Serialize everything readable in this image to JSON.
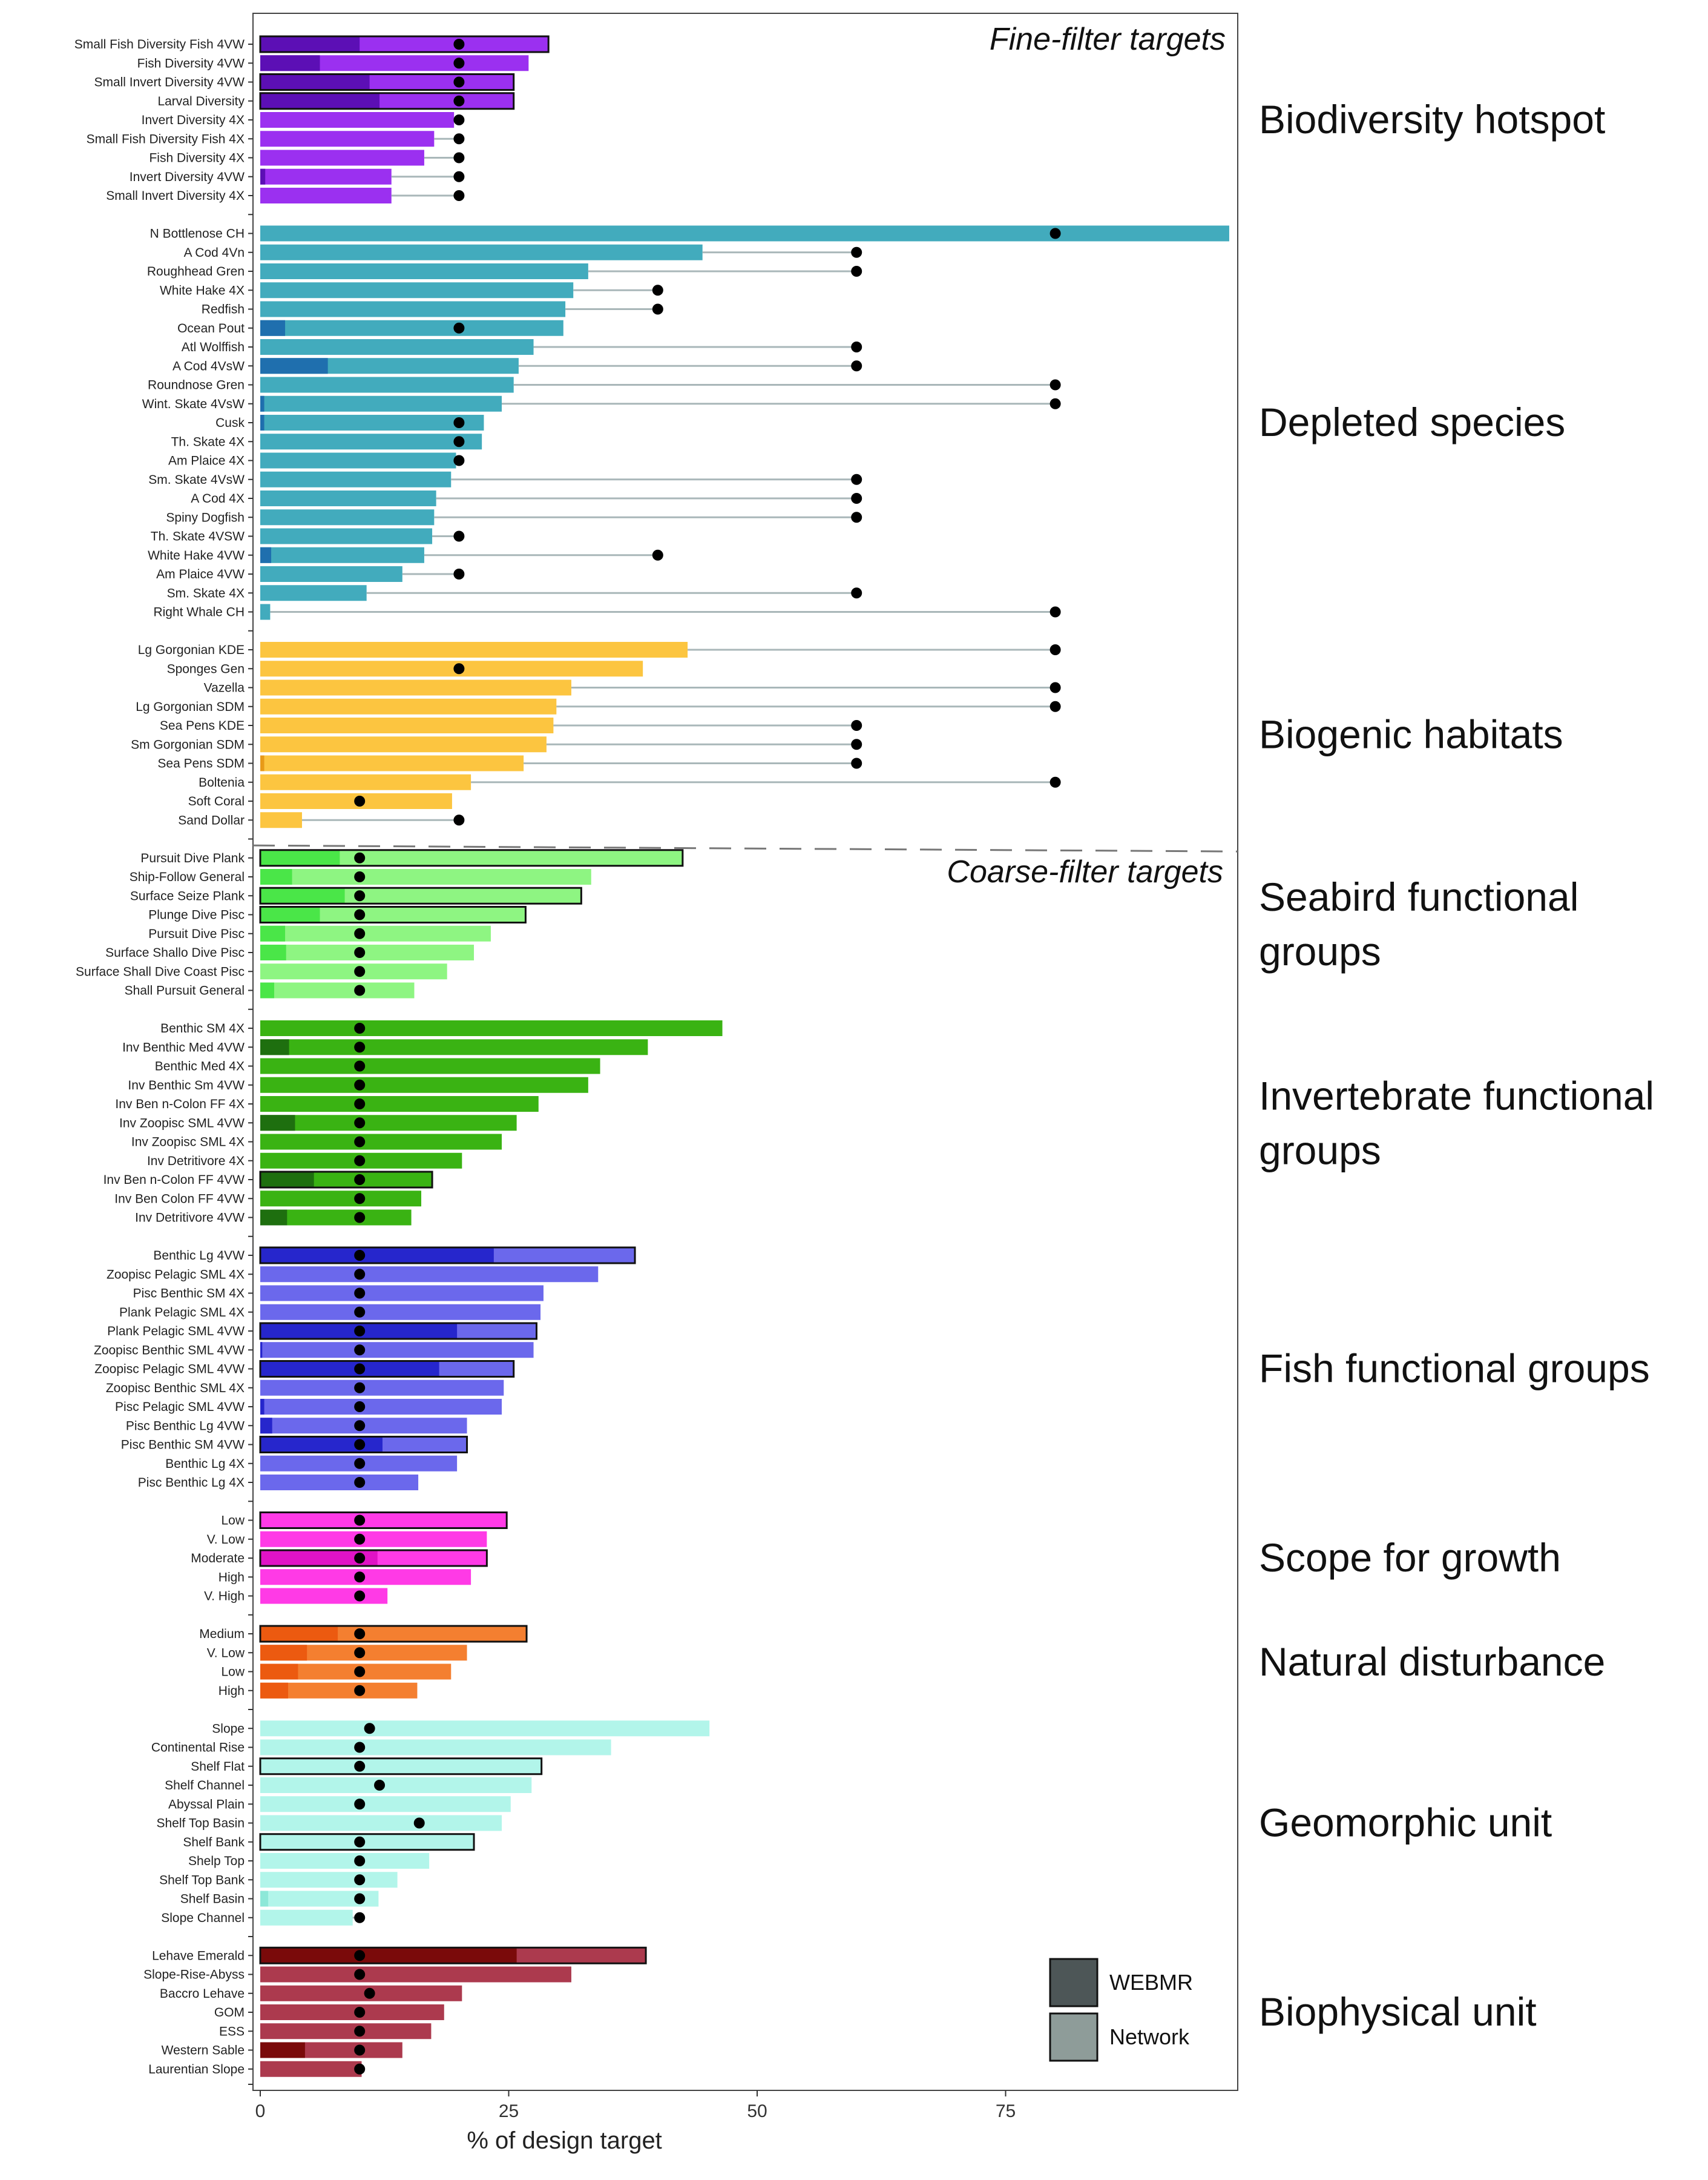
{
  "chart_data": {
    "type": "bar",
    "orientation": "horizontal",
    "xlabel": "% of design target",
    "xlim": [
      0,
      98
    ],
    "xticks": [
      0,
      25,
      50,
      75
    ],
    "grid": false,
    "section_labels": [
      "Fine-filter targets",
      "Coarse-filter targets"
    ],
    "legend": {
      "placement": "bottom-right",
      "entries": [
        {
          "name": "WEBMR",
          "color": "#4d5657"
        },
        {
          "name": "Network",
          "color": "#8e9c99"
        }
      ]
    },
    "groups": [
      {
        "name": "Biodiversity hotspot",
        "section": "fine",
        "color": "#9b30f0",
        "dark_color": "#5c0fb5",
        "light_color": "#9b30f0",
        "categories": [
          {
            "label": "Small Fish Diversity Fish 4VW",
            "network": 29,
            "webmr": 10,
            "target": 20,
            "outlined": true
          },
          {
            "label": "Fish Diversity 4VW",
            "network": 27,
            "webmr": 6,
            "target": 20,
            "outlined": false
          },
          {
            "label": "Small Invert Diversity 4VW",
            "network": 25.5,
            "webmr": 11,
            "target": 20,
            "outlined": true
          },
          {
            "label": "Larval Diversity",
            "network": 25.5,
            "webmr": 12,
            "target": 20,
            "outlined": true
          },
          {
            "label": "Invert Diversity 4X",
            "network": 19.5,
            "webmr": 0,
            "target": 20,
            "outlined": false
          },
          {
            "label": "Small Fish Diversity Fish 4X",
            "network": 17.5,
            "webmr": 0,
            "target": 20,
            "outlined": false
          },
          {
            "label": "Fish Diversity 4X",
            "network": 16.5,
            "webmr": 0,
            "target": 20,
            "outlined": false
          },
          {
            "label": "Invert Diversity 4VW",
            "network": 13.2,
            "webmr": 0.5,
            "target": 20,
            "outlined": false
          },
          {
            "label": "Small Invert Diversity 4X",
            "network": 13.2,
            "webmr": 0,
            "target": 20,
            "outlined": false
          }
        ]
      },
      {
        "name": "Depleted species",
        "section": "fine",
        "color": "#42abbd",
        "dark_color": "#1f6fae",
        "light_color": "#42abbd",
        "categories": [
          {
            "label": "N Bottlenose CH",
            "network": 97.5,
            "webmr": 0,
            "target": 80,
            "outlined": false
          },
          {
            "label": "A Cod 4Vn",
            "network": 44.5,
            "webmr": 0,
            "target": 60,
            "outlined": false
          },
          {
            "label": "Roughhead Gren",
            "network": 33,
            "webmr": 0,
            "target": 60,
            "outlined": false
          },
          {
            "label": "White Hake 4X",
            "network": 31.5,
            "webmr": 0,
            "target": 40,
            "outlined": false
          },
          {
            "label": "Redfish",
            "network": 30.7,
            "webmr": 0,
            "target": 40,
            "outlined": false
          },
          {
            "label": "Ocean Pout",
            "network": 30.5,
            "webmr": 2.5,
            "target": 20,
            "outlined": false
          },
          {
            "label": "Atl Wolffish",
            "network": 27.5,
            "webmr": 0,
            "target": 60,
            "outlined": false
          },
          {
            "label": "A Cod 4VsW",
            "network": 26,
            "webmr": 6.8,
            "target": 60,
            "outlined": false
          },
          {
            "label": "Roundnose Gren",
            "network": 25.5,
            "webmr": 0,
            "target": 80,
            "outlined": false
          },
          {
            "label": "Wint. Skate 4VsW",
            "network": 24.3,
            "webmr": 0.4,
            "target": 80,
            "outlined": false
          },
          {
            "label": "Cusk",
            "network": 22.5,
            "webmr": 0.4,
            "target": 20,
            "outlined": false
          },
          {
            "label": "Th. Skate 4X",
            "network": 22.3,
            "webmr": 0,
            "target": 20,
            "outlined": false
          },
          {
            "label": "Am Plaice 4X",
            "network": 19.7,
            "webmr": 0,
            "target": 20,
            "outlined": false
          },
          {
            "label": "Sm. Skate 4VsW",
            "network": 19.2,
            "webmr": 0,
            "target": 60,
            "outlined": false
          },
          {
            "label": "A Cod 4X",
            "network": 17.7,
            "webmr": 0,
            "target": 60,
            "outlined": false
          },
          {
            "label": "Spiny Dogfish",
            "network": 17.5,
            "webmr": 0,
            "target": 60,
            "outlined": false
          },
          {
            "label": "Th. Skate 4VSW",
            "network": 17.3,
            "webmr": 0,
            "target": 20,
            "outlined": false
          },
          {
            "label": "White Hake 4VW",
            "network": 16.5,
            "webmr": 1.1,
            "target": 40,
            "outlined": false
          },
          {
            "label": "Am Plaice 4VW",
            "network": 14.3,
            "webmr": 0,
            "target": 20,
            "outlined": false
          },
          {
            "label": "Sm. Skate 4X",
            "network": 10.7,
            "webmr": 0,
            "target": 60,
            "outlined": false
          },
          {
            "label": "Right Whale CH",
            "network": 1,
            "webmr": 0,
            "target": 80,
            "outlined": false
          }
        ]
      },
      {
        "name": "Biogenic habitats",
        "section": "fine",
        "color": "#fcc540",
        "dark_color": "#e89a18",
        "light_color": "#fcc540",
        "categories": [
          {
            "label": "Lg Gorgonian KDE",
            "network": 43,
            "webmr": 0,
            "target": 80,
            "outlined": false
          },
          {
            "label": "Sponges Gen",
            "network": 38.5,
            "webmr": 0,
            "target": 20,
            "outlined": false
          },
          {
            "label": "Vazella",
            "network": 31.3,
            "webmr": 0,
            "target": 80,
            "outlined": false
          },
          {
            "label": "Lg Gorgonian SDM",
            "network": 29.8,
            "webmr": 0,
            "target": 80,
            "outlined": false
          },
          {
            "label": "Sea Pens KDE",
            "network": 29.5,
            "webmr": 0,
            "target": 60,
            "outlined": false
          },
          {
            "label": "Sm Gorgonian SDM",
            "network": 28.8,
            "webmr": 0,
            "target": 60,
            "outlined": false
          },
          {
            "label": "Sea Pens SDM",
            "network": 26.5,
            "webmr": 0.4,
            "target": 60,
            "outlined": false
          },
          {
            "label": "Boltenia",
            "network": 21.2,
            "webmr": 0,
            "target": 80,
            "outlined": false
          },
          {
            "label": "Soft Coral",
            "network": 19.3,
            "webmr": 0,
            "target": 10,
            "outlined": false
          },
          {
            "label": "Sand Dollar",
            "network": 4.2,
            "webmr": 0,
            "target": 20,
            "outlined": false
          }
        ]
      },
      {
        "name": "Seabird functional groups",
        "section": "coarse",
        "color": "#8ef582",
        "dark_color": "#4ae648",
        "light_color": "#8ef582",
        "categories": [
          {
            "label": "Pursuit Dive Plank",
            "network": 42.5,
            "webmr": 8,
            "target": 10,
            "outlined": true
          },
          {
            "label": "Ship-Follow General",
            "network": 33.3,
            "webmr": 3.2,
            "target": 10,
            "outlined": false
          },
          {
            "label": "Surface Seize Plank",
            "network": 32.3,
            "webmr": 8.5,
            "target": 10,
            "outlined": true
          },
          {
            "label": "Plunge Dive Pisc",
            "network": 26.7,
            "webmr": 6,
            "target": 10,
            "outlined": true
          },
          {
            "label": "Pursuit Dive Pisc",
            "network": 23.2,
            "webmr": 2.5,
            "target": 10,
            "outlined": false
          },
          {
            "label": "Surface Shallo Dive Pisc",
            "network": 21.5,
            "webmr": 2.6,
            "target": 10,
            "outlined": false
          },
          {
            "label": "Surface Shall Dive Coast Pisc",
            "network": 18.8,
            "webmr": 0,
            "target": 10,
            "outlined": false
          },
          {
            "label": "Shall Pursuit General",
            "network": 15.5,
            "webmr": 1.4,
            "target": 10,
            "outlined": false
          }
        ]
      },
      {
        "name": "Invertebrate functional groups",
        "section": "coarse",
        "color": "#3ab313",
        "dark_color": "#1e6f0f",
        "light_color": "#3ab313",
        "categories": [
          {
            "label": "Benthic SM 4X",
            "network": 46.5,
            "webmr": 0,
            "target": 10,
            "outlined": false
          },
          {
            "label": "Inv Benthic Med 4VW",
            "network": 39,
            "webmr": 2.9,
            "target": 10,
            "outlined": false
          },
          {
            "label": "Benthic Med 4X",
            "network": 34.2,
            "webmr": 0,
            "target": 10,
            "outlined": false
          },
          {
            "label": "Inv Benthic Sm 4VW",
            "network": 33,
            "webmr": 0,
            "target": 10,
            "outlined": false
          },
          {
            "label": "Inv Ben n-Colon FF 4X",
            "network": 28,
            "webmr": 0,
            "target": 10,
            "outlined": false
          },
          {
            "label": "Inv Zoopisc SML 4VW",
            "network": 25.8,
            "webmr": 3.5,
            "target": 10,
            "outlined": false
          },
          {
            "label": "Inv Zoopisc SML 4X",
            "network": 24.3,
            "webmr": 0,
            "target": 10,
            "outlined": false
          },
          {
            "label": "Inv Detritivore 4X",
            "network": 20.3,
            "webmr": 0,
            "target": 10,
            "outlined": false
          },
          {
            "label": "Inv Ben n-Colon FF 4VW",
            "network": 17.3,
            "webmr": 5.4,
            "target": 10,
            "outlined": true
          },
          {
            "label": "Inv Ben Colon FF 4VW",
            "network": 16.2,
            "webmr": 0,
            "target": 10,
            "outlined": false
          },
          {
            "label": "Inv Detritivore 4VW",
            "network": 15.2,
            "webmr": 2.7,
            "target": 10,
            "outlined": false
          }
        ]
      },
      {
        "name": "Fish functional groups",
        "section": "coarse",
        "color": "#6b68ec",
        "dark_color": "#2626cc",
        "light_color": "#6b68ec",
        "categories": [
          {
            "label": "Benthic Lg 4VW",
            "network": 37.7,
            "webmr": 23.5,
            "target": 10,
            "outlined": true
          },
          {
            "label": "Zoopisc Pelagic SML 4X",
            "network": 34,
            "webmr": 0,
            "target": 10,
            "outlined": false
          },
          {
            "label": "Pisc Benthic SM 4X",
            "network": 28.5,
            "webmr": 0,
            "target": 10,
            "outlined": false
          },
          {
            "label": "Plank Pelagic SML 4X",
            "network": 28.2,
            "webmr": 0,
            "target": 10,
            "outlined": false
          },
          {
            "label": "Plank Pelagic SML 4VW",
            "network": 27.8,
            "webmr": 19.8,
            "target": 10,
            "outlined": true
          },
          {
            "label": "Zoopisc Benthic SML 4VW",
            "network": 27.5,
            "webmr": 0.2,
            "target": 10,
            "outlined": false
          },
          {
            "label": "Zoopisc Pelagic SML 4VW",
            "network": 25.5,
            "webmr": 18,
            "target": 10,
            "outlined": true
          },
          {
            "label": "Zoopisc Benthic SML 4X",
            "network": 24.5,
            "webmr": 0,
            "target": 10,
            "outlined": false
          },
          {
            "label": "Pisc Pelagic SML 4VW",
            "network": 24.3,
            "webmr": 0.4,
            "target": 10,
            "outlined": false
          },
          {
            "label": "Pisc Benthic Lg 4VW",
            "network": 20.8,
            "webmr": 1.2,
            "target": 10,
            "outlined": false
          },
          {
            "label": "Pisc Benthic SM 4VW",
            "network": 20.8,
            "webmr": 12.3,
            "target": 10,
            "outlined": true
          },
          {
            "label": "Benthic Lg 4X",
            "network": 19.8,
            "webmr": 0,
            "target": 10,
            "outlined": false
          },
          {
            "label": "Pisc Benthic Lg 4X",
            "network": 15.9,
            "webmr": 0,
            "target": 10,
            "outlined": false
          }
        ]
      },
      {
        "name": "Scope for growth",
        "section": "coarse",
        "color": "#ff3ae6",
        "dark_color": "#e013c6",
        "light_color": "#ff3ae6",
        "categories": [
          {
            "label": "Low",
            "network": 24.8,
            "webmr": 0,
            "target": 10,
            "outlined": true
          },
          {
            "label": "V. Low",
            "network": 22.8,
            "webmr": 0,
            "target": 10,
            "outlined": false
          },
          {
            "label": "Moderate",
            "network": 22.8,
            "webmr": 11.8,
            "target": 10,
            "outlined": true
          },
          {
            "label": "High",
            "network": 21.2,
            "webmr": 0,
            "target": 10,
            "outlined": false
          },
          {
            "label": "V. High",
            "network": 12.8,
            "webmr": 0,
            "target": 10,
            "outlined": false
          }
        ]
      },
      {
        "name": "Natural disturbance",
        "section": "coarse",
        "color": "#f47f30",
        "dark_color": "#ec5a10",
        "light_color": "#f47f30",
        "categories": [
          {
            "label": "Medium",
            "network": 26.8,
            "webmr": 7.8,
            "target": 10,
            "outlined": true
          },
          {
            "label": "V. Low",
            "network": 20.8,
            "webmr": 4.7,
            "target": 10,
            "outlined": false
          },
          {
            "label": "Low",
            "network": 19.2,
            "webmr": 3.8,
            "target": 10,
            "outlined": false
          },
          {
            "label": "High",
            "network": 15.8,
            "webmr": 2.8,
            "target": 10,
            "outlined": false
          }
        ]
      },
      {
        "name": "Geomorphic unit",
        "section": "coarse",
        "color": "#b2f5ea",
        "dark_color": "#8de8d8",
        "light_color": "#b2f5ea",
        "categories": [
          {
            "label": "Slope",
            "network": 45.2,
            "webmr": 0,
            "target": 11,
            "outlined": false
          },
          {
            "label": "Continental Rise",
            "network": 35.3,
            "webmr": 0,
            "target": 10,
            "outlined": false
          },
          {
            "label": "Shelf Flat",
            "network": 28.3,
            "webmr": 0,
            "target": 10,
            "outlined": true
          },
          {
            "label": "Shelf Channel",
            "network": 27.3,
            "webmr": 0,
            "target": 12,
            "outlined": false
          },
          {
            "label": "Abyssal Plain",
            "network": 25.2,
            "webmr": 0,
            "target": 10,
            "outlined": false
          },
          {
            "label": "Shelf Top Basin",
            "network": 24.3,
            "webmr": 0,
            "target": 16,
            "outlined": false
          },
          {
            "label": "Shelf Bank",
            "network": 21.5,
            "webmr": 0,
            "target": 10,
            "outlined": true
          },
          {
            "label": "Shelp Top",
            "network": 17,
            "webmr": 0,
            "target": 10,
            "outlined": false
          },
          {
            "label": "Shelf Top Bank",
            "network": 13.8,
            "webmr": 0,
            "target": 10,
            "outlined": false
          },
          {
            "label": "Shelf Basin",
            "network": 11.9,
            "webmr": 0.8,
            "target": 10,
            "outlined": false
          },
          {
            "label": "Slope Channel",
            "network": 9.3,
            "webmr": 0,
            "target": 10,
            "outlined": false
          }
        ]
      },
      {
        "name": "Biophysical unit",
        "section": "coarse",
        "color": "#ac3a4e",
        "dark_color": "#7a0a0a",
        "light_color": "#ac3a4e",
        "categories": [
          {
            "label": "Lehave Emerald",
            "network": 38.8,
            "webmr": 25.8,
            "target": 10,
            "outlined": true
          },
          {
            "label": "Slope-Rise-Abyss",
            "network": 31.3,
            "webmr": 0,
            "target": 10,
            "outlined": false
          },
          {
            "label": "Baccro Lehave",
            "network": 20.3,
            "webmr": 0,
            "target": 11,
            "outlined": false
          },
          {
            "label": "GOM",
            "network": 18.5,
            "webmr": 0,
            "target": 10,
            "outlined": false
          },
          {
            "label": "ESS",
            "network": 17.2,
            "webmr": 0,
            "target": 10,
            "outlined": false
          },
          {
            "label": "Western Sable",
            "network": 14.3,
            "webmr": 4.5,
            "target": 10,
            "outlined": false
          },
          {
            "label": "Laurentian Slope",
            "network": 10.2,
            "webmr": 0,
            "target": 10,
            "outlined": false
          }
        ]
      }
    ]
  }
}
